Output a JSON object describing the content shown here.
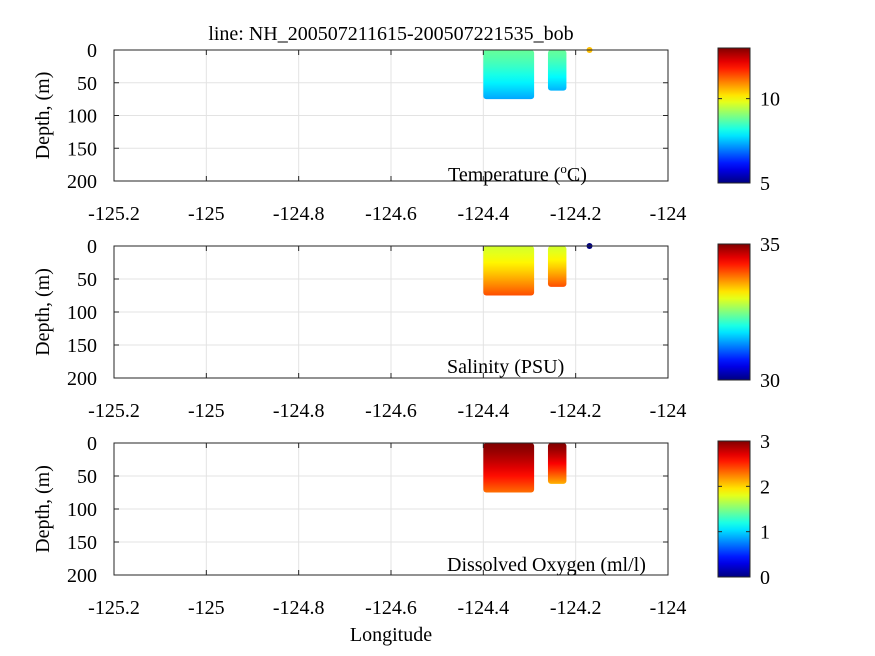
{
  "figure": {
    "title": "line: NH_200507211615-200507221535_bob",
    "xlabel": "Longitude"
  },
  "chart_data": [
    {
      "type": "heatmap",
      "variable_label": "Temperature (",
      "variable_unit_sup": "o",
      "variable_unit_tail": "C)",
      "ylabel": "Depth, (m)",
      "xlim": [
        -125.2,
        -124.0
      ],
      "ylim": [
        200,
        0
      ],
      "x_ticks": [
        "-125.2",
        "-125",
        "-124.8",
        "-124.6",
        "-124.4",
        "-124.2",
        "-124"
      ],
      "y_ticks": [
        "0",
        "50",
        "100",
        "150",
        "200"
      ],
      "colorbar": {
        "range": [
          5,
          13
        ],
        "ticks": [
          "5",
          "10"
        ]
      },
      "grid": true,
      "surface_point": {
        "lon": -124.17,
        "depth": 0,
        "value": 10.5
      },
      "blocks": [
        {
          "lon_start": -124.4,
          "lon_end": -124.29,
          "max_depth": 75,
          "top_value": 8.8,
          "bottom_value": 7.3
        },
        {
          "lon_start": -124.26,
          "lon_end": -124.22,
          "max_depth": 62,
          "top_value": 8.8,
          "bottom_value": 7.4
        }
      ]
    },
    {
      "type": "heatmap",
      "variable_label": "Salinity (PSU)",
      "ylabel": "Depth, (m)",
      "xlim": [
        -125.2,
        -124.0
      ],
      "ylim": [
        200,
        0
      ],
      "x_ticks": [
        "-125.2",
        "-125",
        "-124.8",
        "-124.6",
        "-124.4",
        "-124.2",
        "-124"
      ],
      "y_ticks": [
        "0",
        "50",
        "100",
        "150",
        "200"
      ],
      "colorbar": {
        "range": [
          30,
          35
        ],
        "ticks": [
          "30",
          "35"
        ]
      },
      "grid": true,
      "surface_point": {
        "lon": -124.17,
        "depth": 0,
        "value": 30.0
      },
      "blocks": [
        {
          "lon_start": -124.4,
          "lon_end": -124.29,
          "max_depth": 75,
          "top_value": 32.9,
          "bottom_value": 34.0
        },
        {
          "lon_start": -124.26,
          "lon_end": -124.22,
          "max_depth": 62,
          "top_value": 32.9,
          "bottom_value": 34.0
        }
      ]
    },
    {
      "type": "heatmap",
      "variable_label": "Dissolved Oxygen (ml/l)",
      "ylabel": "Depth, (m)",
      "xlim": [
        -125.2,
        -124.0
      ],
      "ylim": [
        200,
        0
      ],
      "x_ticks": [
        "-125.2",
        "-125",
        "-124.8",
        "-124.6",
        "-124.4",
        "-124.2",
        "-124"
      ],
      "y_ticks": [
        "0",
        "50",
        "100",
        "150",
        "200"
      ],
      "colorbar": {
        "range": [
          0,
          3
        ],
        "ticks": [
          "0",
          "1",
          "2",
          "3"
        ]
      },
      "grid": true,
      "blocks": [
        {
          "lon_start": -124.4,
          "lon_end": -124.29,
          "max_depth": 75,
          "top_value": 3.0,
          "bottom_value": 2.3
        },
        {
          "lon_start": -124.26,
          "lon_end": -124.22,
          "max_depth": 62,
          "top_value": 3.0,
          "bottom_value": 2.1
        }
      ]
    }
  ]
}
